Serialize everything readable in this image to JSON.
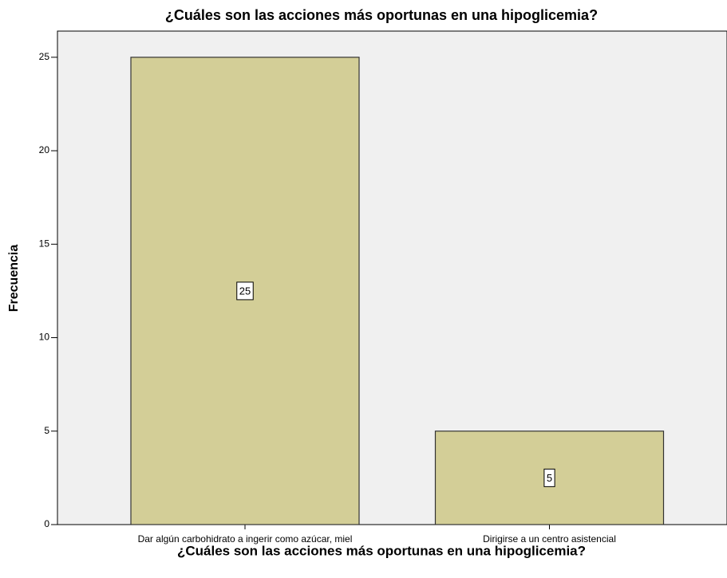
{
  "chart_data": {
    "type": "bar",
    "title": "¿Cuáles son las acciones más oportunas en una hipoglicemia?",
    "x_label": "¿Cuáles son las acciones más oportunas en una hipoglicemia?",
    "y_label": "Frecuencia",
    "categories": [
      "Dar algún carbohidrato a ingerir como azúcar, miel",
      "Dirigirse a un centro asistencial"
    ],
    "values": [
      25,
      5
    ],
    "color": "#d3ce97",
    "ylim": [
      0,
      26.4
    ],
    "yticks": [
      0,
      5,
      10,
      15,
      20,
      25
    ],
    "grid": false
  }
}
